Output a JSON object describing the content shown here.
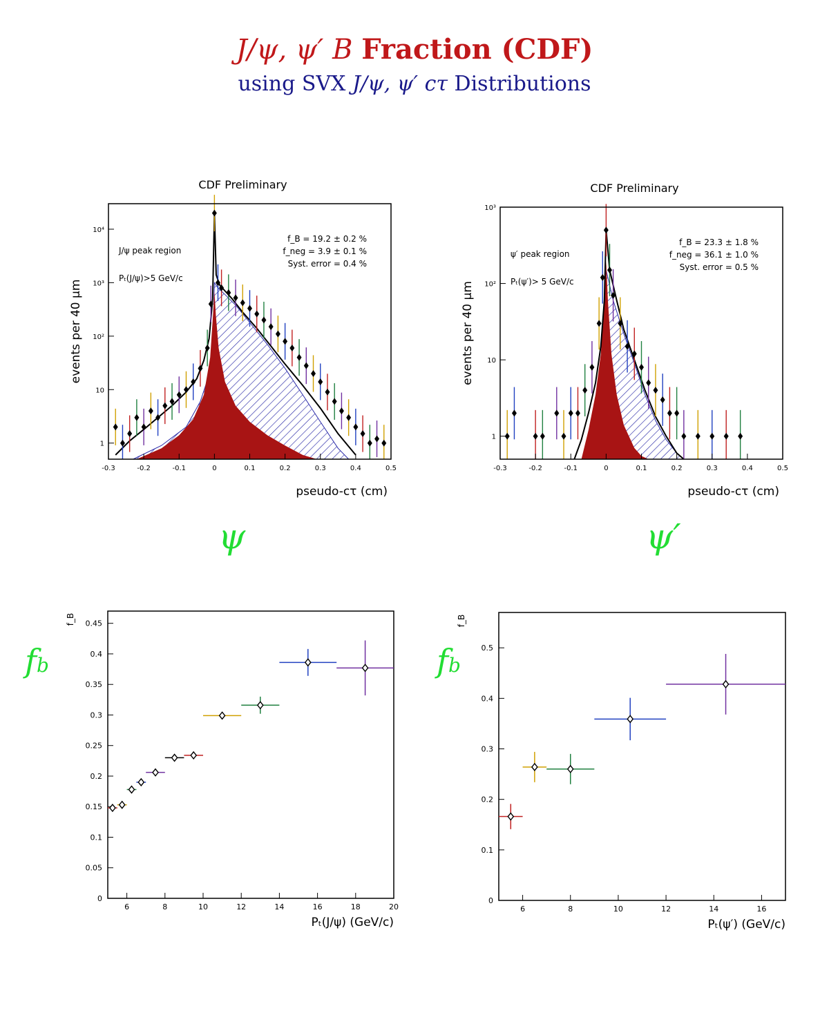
{
  "page": {
    "title_parts": [
      "J/ψ, ψ′ B",
      "Fraction (CDF)"
    ],
    "subtitle_parts": [
      "using SVX",
      "J/ψ, ψ′ cτ",
      "Distributions"
    ],
    "handwritten": {
      "psi": "ψ",
      "psi_prime": "ψ′",
      "fb_left": "f",
      "fb_left_sub": "b",
      "fb_right": "f",
      "fb_right_sub": "b"
    }
  },
  "colors": {
    "title": "#c0181a",
    "subtitle": "#1a1a8a",
    "fill_prompt": "#a81414",
    "hatch": "#2a2aa8",
    "handwriting": "#22dd33"
  },
  "chart_data": [
    {
      "type": "area",
      "title": "CDF Preliminary",
      "xlabel": "pseudo-cτ (cm)",
      "ylabel": "events per 40 μm",
      "yscale": "log",
      "xlim": [
        -0.3,
        0.5
      ],
      "ylim": [
        0.5,
        30000
      ],
      "xticks": [
        "-0.3",
        "-0.2",
        "-0.1",
        "0",
        "0.1",
        "0.2",
        "0.3",
        "0.4",
        "0.5"
      ],
      "yticks": [
        {
          "value": 1,
          "label": "1"
        },
        {
          "value": 10,
          "label": "10"
        },
        {
          "value": 100,
          "label": "10²"
        },
        {
          "value": 1000,
          "label": "10³"
        },
        {
          "value": 10000,
          "label": "10⁴"
        }
      ],
      "annotations": [
        "J/ψ peak region",
        "Pₜ(J/ψ)>5 GeV/c",
        "f_B = 19.2 ± 0.2 %",
        "f_neg = 3.9 ± 0.1 %",
        "Syst. error = 0.4 %"
      ],
      "series": [
        {
          "name": "fit",
          "x": [
            -0.28,
            -0.24,
            -0.2,
            -0.16,
            -0.12,
            -0.08,
            -0.05,
            -0.03,
            -0.015,
            -0.005,
            0,
            0.005,
            0.015,
            0.03,
            0.05,
            0.08,
            0.12,
            0.16,
            0.2,
            0.25,
            0.3,
            0.35,
            0.4
          ],
          "y": [
            0.6,
            1.1,
            1.8,
            3,
            5,
            9,
            16,
            35,
            90,
            500,
            20000,
            1400,
            900,
            700,
            500,
            280,
            140,
            65,
            30,
            12,
            4.5,
            1.5,
            0.6
          ]
        },
        {
          "name": "B",
          "x": [
            -0.23,
            -0.15,
            -0.08,
            -0.04,
            -0.02,
            -0.005,
            0,
            0.01,
            0.03,
            0.06,
            0.1,
            0.15,
            0.2,
            0.25,
            0.3,
            0.35,
            0.38
          ],
          "y": [
            0.5,
            0.9,
            2,
            6,
            15,
            60,
            1000,
            800,
            600,
            380,
            180,
            70,
            25,
            8,
            2.5,
            0.8,
            0.5
          ]
        },
        {
          "name": "prompt",
          "x": [
            -0.22,
            -0.15,
            -0.1,
            -0.06,
            -0.03,
            -0.012,
            -0.004,
            0,
            0.004,
            0.012,
            0.03,
            0.06,
            0.1,
            0.15,
            0.2,
            0.25,
            0.29
          ],
          "y": [
            0.5,
            0.8,
            1.4,
            2.8,
            8,
            40,
            250,
            700,
            250,
            60,
            14,
            5,
            2.5,
            1.4,
            0.9,
            0.6,
            0.5
          ]
        },
        {
          "name": "data",
          "x": [
            -0.28,
            -0.26,
            -0.24,
            -0.22,
            -0.2,
            -0.18,
            -0.16,
            -0.14,
            -0.12,
            -0.1,
            -0.08,
            -0.06,
            -0.04,
            -0.02,
            -0.01,
            0,
            0.01,
            0.02,
            0.04,
            0.06,
            0.08,
            0.1,
            0.12,
            0.14,
            0.16,
            0.18,
            0.2,
            0.22,
            0.24,
            0.26,
            0.28,
            0.3,
            0.32,
            0.34,
            0.36,
            0.38,
            0.4,
            0.42,
            0.44,
            0.46,
            0.48
          ],
          "y": [
            2,
            1,
            1.5,
            3,
            2,
            4,
            3,
            5,
            6,
            8,
            10,
            14,
            25,
            60,
            400,
            20000,
            1000,
            800,
            650,
            520,
            420,
            330,
            260,
            200,
            150,
            110,
            80,
            60,
            40,
            28,
            20,
            14,
            9,
            6,
            4,
            3,
            2,
            1.5,
            1,
            1.2,
            1
          ]
        }
      ]
    },
    {
      "type": "area",
      "title": "CDF Preliminary",
      "xlabel": "pseudo-cτ (cm)",
      "ylabel": "events per 40 μm",
      "yscale": "log",
      "xlim": [
        -0.3,
        0.5
      ],
      "ylim": [
        0.5,
        1000
      ],
      "xticks": [
        "-0.3",
        "-0.2",
        "-0.1",
        "0",
        "0.1",
        "0.2",
        "0.3",
        "0.4",
        "0.5"
      ],
      "yticks": [
        {
          "value": 1,
          "label": "1"
        },
        {
          "value": 10,
          "label": "10"
        },
        {
          "value": 100,
          "label": "10²"
        },
        {
          "value": 1000,
          "label": "10³"
        }
      ],
      "annotations": [
        "ψ′ peak region",
        "Pₜ(ψ′)> 5 GeV/c",
        "f_B = 23.3 ± 1.8 %",
        "f_neg = 36.1 ± 1.0 %",
        "Syst. error = 0.5 %"
      ],
      "series": [
        {
          "name": "fit",
          "x": [
            -0.09,
            -0.07,
            -0.05,
            -0.03,
            -0.015,
            -0.005,
            0,
            0.01,
            0.03,
            0.05,
            0.08,
            0.11,
            0.14,
            0.17,
            0.2,
            0.22
          ],
          "y": [
            0.5,
            0.9,
            2,
            5,
            15,
            60,
            500,
            150,
            60,
            25,
            10,
            4,
            1.8,
            1,
            0.6,
            0.5
          ]
        },
        {
          "name": "B",
          "x": [
            -0.06,
            -0.03,
            -0.01,
            0,
            0.02,
            0.05,
            0.08,
            0.11,
            0.14,
            0.17,
            0.2,
            0.22
          ],
          "y": [
            0.5,
            2,
            12,
            150,
            60,
            22,
            9,
            3.5,
            1.6,
            0.9,
            0.6,
            0.5
          ]
        },
        {
          "name": "prompt",
          "x": [
            -0.07,
            -0.05,
            -0.03,
            -0.015,
            -0.005,
            0,
            0.005,
            0.015,
            0.03,
            0.05,
            0.08,
            0.1,
            0.12
          ],
          "y": [
            0.5,
            1.2,
            3.5,
            12,
            60,
            200,
            60,
            12,
            3.5,
            1.4,
            0.7,
            0.55,
            0.5
          ]
        },
        {
          "name": "data",
          "x": [
            -0.28,
            -0.26,
            -0.2,
            -0.18,
            -0.14,
            -0.12,
            -0.1,
            -0.08,
            -0.06,
            -0.04,
            -0.02,
            -0.01,
            0,
            0.01,
            0.02,
            0.04,
            0.06,
            0.08,
            0.1,
            0.12,
            0.14,
            0.16,
            0.18,
            0.2,
            0.22,
            0.26,
            0.3,
            0.34,
            0.38
          ],
          "y": [
            1,
            2,
            1,
            1,
            2,
            1,
            2,
            2,
            4,
            8,
            30,
            120,
            500,
            150,
            70,
            30,
            15,
            12,
            8,
            5,
            4,
            3,
            2,
            2,
            1,
            1,
            1,
            1,
            1
          ]
        }
      ]
    },
    {
      "type": "scatter",
      "xlabel": "Pₜ(J/ψ) (GeV/c)",
      "ylabel": "f_B",
      "xlim": [
        5,
        20
      ],
      "ylim": [
        0,
        0.47
      ],
      "xticks": [
        6,
        8,
        10,
        12,
        14,
        16,
        18,
        20
      ],
      "yticks": [
        "0",
        "0.05",
        "0.1",
        "0.15",
        "0.2",
        "0.25",
        "0.3",
        "0.35",
        "0.4",
        "0.45"
      ],
      "points": [
        {
          "x": 5.25,
          "y": 0.148,
          "xerr": 0.25,
          "yerr": 0.003
        },
        {
          "x": 5.75,
          "y": 0.153,
          "xerr": 0.25,
          "yerr": 0.003
        },
        {
          "x": 6.25,
          "y": 0.178,
          "xerr": 0.25,
          "yerr": 0.003
        },
        {
          "x": 6.75,
          "y": 0.19,
          "xerr": 0.25,
          "yerr": 0.003
        },
        {
          "x": 7.5,
          "y": 0.206,
          "xerr": 0.5,
          "yerr": 0.003
        },
        {
          "x": 8.5,
          "y": 0.23,
          "xerr": 0.5,
          "yerr": 0.004
        },
        {
          "x": 9.5,
          "y": 0.234,
          "xerr": 0.5,
          "yerr": 0.006
        },
        {
          "x": 11,
          "y": 0.299,
          "xerr": 1,
          "yerr": 0.005
        },
        {
          "x": 13,
          "y": 0.316,
          "xerr": 1,
          "yerr": 0.014
        },
        {
          "x": 15.5,
          "y": 0.386,
          "xerr": 1.5,
          "yerr": 0.022
        },
        {
          "x": 18.5,
          "y": 0.377,
          "xerr": 1.5,
          "yerr": 0.045
        }
      ]
    },
    {
      "type": "scatter",
      "xlabel": "Pₜ(ψ′) (GeV/c)",
      "ylabel": "f_B",
      "xlim": [
        5,
        17
      ],
      "ylim": [
        0,
        0.57
      ],
      "xticks": [
        6,
        8,
        10,
        12,
        14,
        16
      ],
      "yticks": [
        "0",
        "0.1",
        "0.2",
        "0.3",
        "0.4",
        "0.5"
      ],
      "points": [
        {
          "x": 5.5,
          "y": 0.166,
          "xerr": 0.5,
          "yerr": 0.025
        },
        {
          "x": 6.5,
          "y": 0.264,
          "xerr": 0.5,
          "yerr": 0.03
        },
        {
          "x": 8,
          "y": 0.26,
          "xerr": 1,
          "yerr": 0.03
        },
        {
          "x": 10.5,
          "y": 0.359,
          "xerr": 1.5,
          "yerr": 0.042
        },
        {
          "x": 14.5,
          "y": 0.428,
          "xerr": 2.5,
          "yerr": 0.06
        }
      ]
    }
  ]
}
